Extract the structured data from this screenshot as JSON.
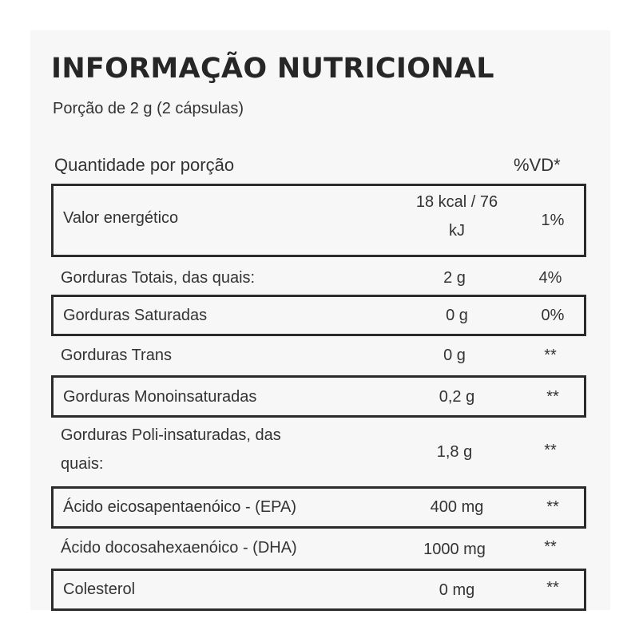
{
  "title": "INFORMAÇÃO NUTRICIONAL",
  "serving": "Porção de 2 g (2 cápsulas)",
  "header": {
    "quantity_label": "Quantidade por porção",
    "vd_label": "%VD*"
  },
  "rows": [
    {
      "name": "Valor energético",
      "qty_line1": "18 kcal / 76",
      "qty_line2": "kJ",
      "vd": "1%"
    },
    {
      "name": "Gorduras Totais, das quais:",
      "qty": "2 g",
      "vd": "4%"
    },
    {
      "name": "Gorduras Saturadas",
      "qty": "0 g",
      "vd": "0%"
    },
    {
      "name": "Gorduras Trans",
      "qty": "0 g",
      "vd": "**"
    },
    {
      "name": "Gorduras Monoinsaturadas",
      "qty": "0,2 g",
      "vd": "**"
    },
    {
      "name_line1": "Gorduras Poli-insaturadas, das",
      "name_line2": "quais:",
      "qty": "1,8 g",
      "vd": "**"
    },
    {
      "name": "Ácido eicosapentaenóico - (EPA)",
      "qty": "400 mg",
      "vd": "**"
    },
    {
      "name": "Ácido docosahexaenóico - (DHA)",
      "qty": "1000 mg",
      "vd": "**"
    },
    {
      "name": "Colesterol",
      "qty": "0 mg",
      "vd": "**"
    }
  ]
}
